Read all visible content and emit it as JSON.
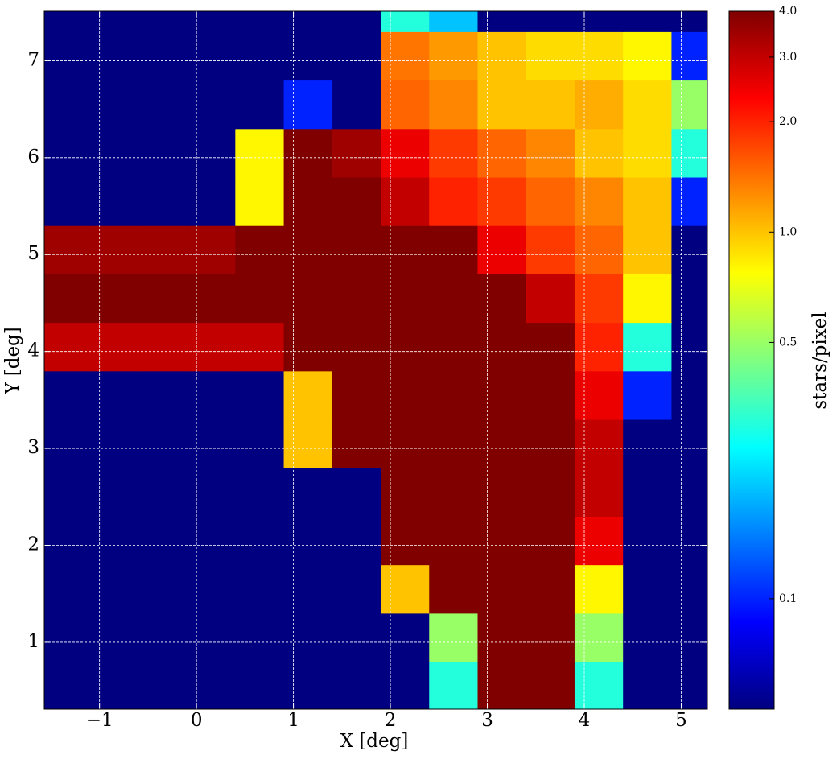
{
  "chart_data": {
    "type": "heatmap",
    "xlabel": "X [deg]",
    "ylabel": "Y [deg]",
    "colorbar_label": "stars/pixel",
    "colormap": "jet",
    "color_scale": "log",
    "grid": true,
    "xlim": [
      -1.57,
      5.27
    ],
    "ylim": [
      0.31,
      7.51
    ],
    "zlim": [
      0.05,
      4.0
    ],
    "xticks": [
      {
        "value": -1,
        "label": "−1"
      },
      0,
      1,
      2,
      3,
      4,
      5
    ],
    "yticks": [
      1,
      2,
      3,
      4,
      5,
      6,
      7
    ],
    "zticks": [
      0.1,
      0.5,
      {
        "value": 1,
        "label": "1.0"
      },
      {
        "value": 2,
        "label": "2.0"
      },
      {
        "value": 3,
        "label": "3.0"
      },
      {
        "value": 4,
        "label": "4.0"
      }
    ],
    "x": [
      -1.35,
      -0.85,
      -0.35,
      0.15,
      0.65,
      1.15,
      1.65,
      2.15,
      2.65,
      3.15,
      3.65,
      4.15,
      4.65,
      5.15
    ],
    "y": [
      0.55,
      1.05,
      1.55,
      2.05,
      2.55,
      3.05,
      3.55,
      4.05,
      4.55,
      5.05,
      5.55,
      6.05,
      6.55,
      7.05,
      7.55
    ],
    "z": [
      [
        0.05,
        0.05,
        0.05,
        0.05,
        0.05,
        0.05,
        0.05,
        0.05,
        0.3,
        4,
        4,
        0.3,
        0.05,
        0.05
      ],
      [
        0.05,
        0.05,
        0.05,
        0.05,
        0.05,
        0.05,
        0.05,
        0.05,
        0.5,
        4,
        4,
        0.5,
        0.05,
        0.05
      ],
      [
        0.05,
        0.05,
        0.05,
        0.05,
        0.05,
        0.05,
        0.05,
        1,
        4,
        4,
        4,
        0.8,
        0.05,
        0.05
      ],
      [
        0.05,
        0.05,
        0.05,
        0.05,
        0.05,
        0.05,
        0.05,
        4,
        4,
        4,
        4,
        2.5,
        0.05,
        0.05
      ],
      [
        0.05,
        0.05,
        0.05,
        0.05,
        0.05,
        0.05,
        0.05,
        4,
        4,
        4,
        4,
        3,
        0.05,
        0.05
      ],
      [
        0.05,
        0.05,
        0.05,
        0.05,
        0.05,
        1,
        4,
        4,
        4,
        4,
        4,
        3,
        0.05,
        0.05
      ],
      [
        0.05,
        0.05,
        0.05,
        0.05,
        0.05,
        1,
        4,
        4,
        4,
        4,
        4,
        2.5,
        0.1,
        0.05
      ],
      [
        3,
        3,
        3,
        3,
        3,
        4,
        4,
        4,
        4,
        4,
        4,
        2,
        0.3,
        0.05
      ],
      [
        4,
        4,
        4,
        4,
        4,
        4,
        4,
        4,
        4,
        4,
        3,
        1.8,
        0.8,
        0.05
      ],
      [
        3.5,
        3.5,
        3.5,
        3.5,
        4,
        4,
        4,
        4,
        4,
        2.5,
        1.8,
        1.5,
        1,
        0.05
      ],
      [
        0.05,
        0.05,
        0.05,
        0.05,
        0.8,
        4,
        4,
        3,
        2,
        1.8,
        1.5,
        1.3,
        1,
        0.1
      ],
      [
        0.05,
        0.05,
        0.05,
        0.05,
        0.8,
        4,
        3.5,
        2.5,
        1.8,
        1.5,
        1.3,
        1,
        0.9,
        0.3
      ],
      [
        0.05,
        0.05,
        0.05,
        0.05,
        0.05,
        0.1,
        0.05,
        1.5,
        1.3,
        1,
        1,
        1.1,
        0.9,
        0.5
      ],
      [
        0.05,
        0.05,
        0.05,
        0.05,
        0.05,
        0.05,
        0.05,
        1.4,
        1.2,
        1,
        0.9,
        0.9,
        0.8,
        0.1
      ],
      [
        0.05,
        0.05,
        0.05,
        0.05,
        0.05,
        0.05,
        0.05,
        0.3,
        0.2,
        0.05,
        0.05,
        0.05,
        0.05,
        0.05
      ]
    ]
  }
}
